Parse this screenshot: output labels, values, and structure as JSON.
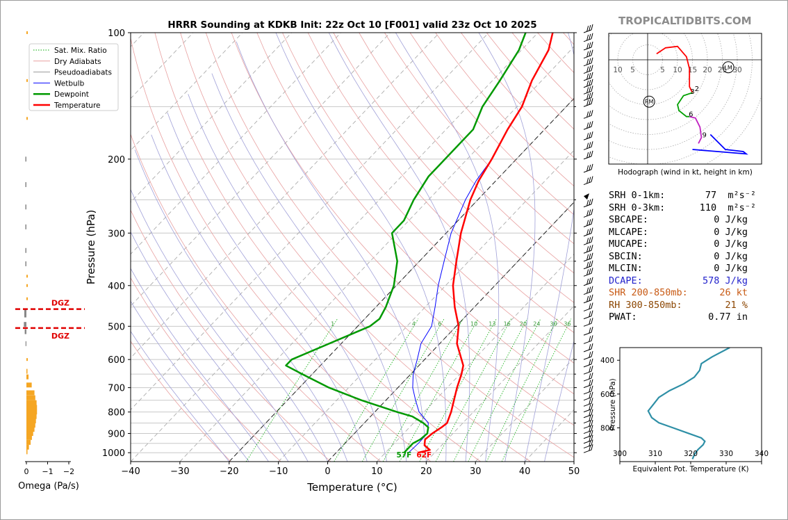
{
  "title": "HRRR Sounding at KDKB Init: 22z Oct 10 [F001] valid 23z Oct 10 2025",
  "brand": "TROPICALTIDBITS.COM",
  "colors": {
    "temperature": "#ff0000",
    "dewpoint": "#009900",
    "wetbulb": "#0000ff",
    "dry_adiabat": "#e8a0a0",
    "moist_adiabat": "#a0a0d8",
    "mixing_ratio": "#00aa00",
    "dcape": "#2222cc",
    "shr": "#c85a14",
    "rh": "#8b4500",
    "omega_bar": "#f5a623",
    "dgz": "#e00000",
    "theta_e": "#2e8fa6"
  },
  "chart_data": [
    {
      "type": "line",
      "name": "skew-t",
      "xlabel": "Temperature (°C)",
      "ylabel": "Pressure (hPa)",
      "xlim": [
        -40,
        50
      ],
      "ylim": [
        1050,
        100
      ],
      "y_scale": "log",
      "x_ticks": [
        -40,
        -30,
        -20,
        -10,
        0,
        10,
        20,
        30,
        40,
        50
      ],
      "y_ticks": [
        100,
        200,
        300,
        400,
        500,
        600,
        700,
        800,
        900,
        1000
      ],
      "legend": [
        "Sat. Mix. Ratio",
        "Dry Adiabats",
        "Pseudoadiabats",
        "Wetbulb",
        "Dewpoint",
        "Temperature"
      ],
      "legend_position": "top-left",
      "mixing_ratio_labels": [
        "1",
        "4",
        "6",
        "8",
        "10",
        "13",
        "16",
        "20",
        "24",
        "30",
        "36"
      ],
      "surface_labels": {
        "dewpoint": "57F",
        "temperature": "62F"
      },
      "series": [
        {
          "name": "Temperature",
          "points": [
            [
              1000,
              16.6
            ],
            [
              985,
              18.5
            ],
            [
              960,
              16.5
            ],
            [
              930,
              15.5
            ],
            [
              900,
              15.8
            ],
            [
              870,
              16.5
            ],
            [
              850,
              16.8
            ],
            [
              800,
              15.5
            ],
            [
              750,
              13.8
            ],
            [
              700,
              12
            ],
            [
              650,
              10.3
            ],
            [
              620,
              9
            ],
            [
              600,
              7.5
            ],
            [
              550,
              3.5
            ],
            [
              500,
              0.5
            ],
            [
              450,
              -4
            ],
            [
              400,
              -8.5
            ],
            [
              350,
              -12.5
            ],
            [
              300,
              -17
            ],
            [
              250,
              -21.5
            ],
            [
              225,
              -23.5
            ],
            [
              200,
              -25
            ],
            [
              170,
              -27.5
            ],
            [
              150,
              -29
            ],
            [
              130,
              -32
            ],
            [
              110,
              -34.5
            ],
            [
              100,
              -37
            ]
          ]
        },
        {
          "name": "Dewpoint",
          "points": [
            [
              1000,
              13.8
            ],
            [
              970,
              13.8
            ],
            [
              950,
              13.8
            ],
            [
              930,
              14.5
            ],
            [
              900,
              14.8
            ],
            [
              870,
              13.8
            ],
            [
              850,
              12
            ],
            [
              820,
              8.5
            ],
            [
              800,
              4.5
            ],
            [
              750,
              -5
            ],
            [
              700,
              -14
            ],
            [
              650,
              -22
            ],
            [
              620,
              -27
            ],
            [
              600,
              -27
            ],
            [
              500,
              -17.5
            ],
            [
              480,
              -17
            ],
            [
              450,
              -18
            ],
            [
              400,
              -20.5
            ],
            [
              350,
              -24.5
            ],
            [
              300,
              -31
            ],
            [
              280,
              -31
            ],
            [
              250,
              -33
            ],
            [
              220,
              -34.5
            ],
            [
              200,
              -34.5
            ],
            [
              170,
              -34.5
            ],
            [
              150,
              -37
            ],
            [
              130,
              -38.5
            ],
            [
              110,
              -40.5
            ],
            [
              100,
              -42.5
            ]
          ]
        },
        {
          "name": "Wetbulb",
          "points": [
            [
              1000,
              14.7
            ],
            [
              950,
              14.9
            ],
            [
              900,
              14.8
            ],
            [
              850,
              13
            ],
            [
              800,
              9
            ],
            [
              750,
              6
            ],
            [
              700,
              3
            ],
            [
              650,
              0.5
            ],
            [
              600,
              -1.5
            ],
            [
              550,
              -3.8
            ],
            [
              500,
              -5
            ],
            [
              450,
              -8
            ],
            [
              400,
              -11.5
            ],
            [
              350,
              -15
            ],
            [
              300,
              -19
            ],
            [
              250,
              -22.5
            ],
            [
              225,
              -24
            ],
            [
              200,
              -25
            ]
          ]
        }
      ]
    },
    {
      "type": "line",
      "name": "hodograph",
      "xlabel": "Hodograph (wind in kt, height in km)",
      "ring_labels": [
        "10",
        "5",
        "5",
        "10",
        "15",
        "20",
        "25",
        "30"
      ],
      "height_labels": [
        "2",
        "3",
        "6",
        "9"
      ],
      "markers": [
        "LM",
        "RM"
      ]
    },
    {
      "type": "bar",
      "name": "omega",
      "xlabel": "Omega (Pa/s)",
      "x_ticks": [
        "0",
        "−1",
        "−2"
      ],
      "dgz_label": "DGZ",
      "dgz_pressure_range": [
        455,
        505
      ],
      "bars": [
        [
          100,
          0
        ],
        [
          130,
          0
        ],
        [
          160,
          0
        ],
        [
          200,
          0.05
        ],
        [
          230,
          0.05
        ],
        [
          260,
          0.05
        ],
        [
          290,
          0.05
        ],
        [
          330,
          0.05
        ],
        [
          355,
          0.05
        ],
        [
          380,
          0
        ],
        [
          400,
          0
        ],
        [
          430,
          0
        ],
        [
          460,
          0.1
        ],
        [
          470,
          0.1
        ],
        [
          495,
          0.12
        ],
        [
          515,
          0.08
        ],
        [
          550,
          0.04
        ],
        [
          600,
          0
        ],
        [
          640,
          -0.05
        ],
        [
          660,
          -0.1
        ],
        [
          690,
          -0.25
        ],
        [
          720,
          -0.38
        ],
        [
          740,
          -0.42
        ],
        [
          760,
          -0.48
        ],
        [
          780,
          -0.5
        ],
        [
          800,
          -0.5
        ],
        [
          820,
          -0.48
        ],
        [
          840,
          -0.45
        ],
        [
          860,
          -0.42
        ],
        [
          880,
          -0.38
        ],
        [
          900,
          -0.32
        ],
        [
          920,
          -0.26
        ],
        [
          945,
          -0.2
        ],
        [
          970,
          -0.12
        ],
        [
          995,
          -0.05
        ]
      ]
    },
    {
      "type": "line",
      "name": "theta-e",
      "xlabel": "Equivalent Pot. Temperature (K)",
      "ylabel": "Pressure (hPa)",
      "xlim": [
        300,
        340
      ],
      "x_ticks": [
        300,
        310,
        320,
        330,
        340
      ],
      "y_ticks": [
        400,
        600,
        800
      ],
      "ylim": [
        1000,
        325
      ],
      "points": [
        [
          325,
          331
        ],
        [
          380,
          326
        ],
        [
          420,
          323
        ],
        [
          460,
          322.5
        ],
        [
          500,
          321
        ],
        [
          540,
          318
        ],
        [
          580,
          314
        ],
        [
          620,
          311
        ],
        [
          660,
          309.5
        ],
        [
          700,
          308
        ],
        [
          740,
          309
        ],
        [
          770,
          311
        ],
        [
          800,
          315
        ],
        [
          830,
          319
        ],
        [
          860,
          323
        ],
        [
          880,
          324
        ],
        [
          900,
          323.5
        ],
        [
          930,
          322
        ],
        [
          960,
          321
        ],
        [
          985,
          320.5
        ]
      ]
    }
  ],
  "stats": [
    {
      "label": "SRH 0-1km:",
      "value": "77",
      "unit": "m²s⁻²",
      "color": "#000000"
    },
    {
      "label": "SRH 0-3km:",
      "value": "110",
      "unit": "m²s⁻²",
      "color": "#000000"
    },
    {
      "label": "SBCAPE:",
      "value": "0 J/kg",
      "unit": "",
      "color": "#000000"
    },
    {
      "label": "MLCAPE:",
      "value": "0 J/kg",
      "unit": "",
      "color": "#000000"
    },
    {
      "label": "MUCAPE:",
      "value": "0 J/kg",
      "unit": "",
      "color": "#000000"
    },
    {
      "label": "SBCIN:",
      "value": "0 J/kg",
      "unit": "",
      "color": "#000000"
    },
    {
      "label": "MLCIN:",
      "value": "0 J/kg",
      "unit": "",
      "color": "#000000"
    },
    {
      "label": "DCAPE:",
      "value": "578 J/kg",
      "unit": "",
      "color": "#2222cc"
    },
    {
      "label": "SHR 200-850mb:",
      "value": "26 kt",
      "unit": "",
      "color": "#c85a14"
    },
    {
      "label": "RH 300-850mb:",
      "value": "21 %",
      "unit": "",
      "color": "#8b4500"
    },
    {
      "label": "PWAT:",
      "value": "0.77 in",
      "unit": "",
      "color": "#000000"
    }
  ]
}
